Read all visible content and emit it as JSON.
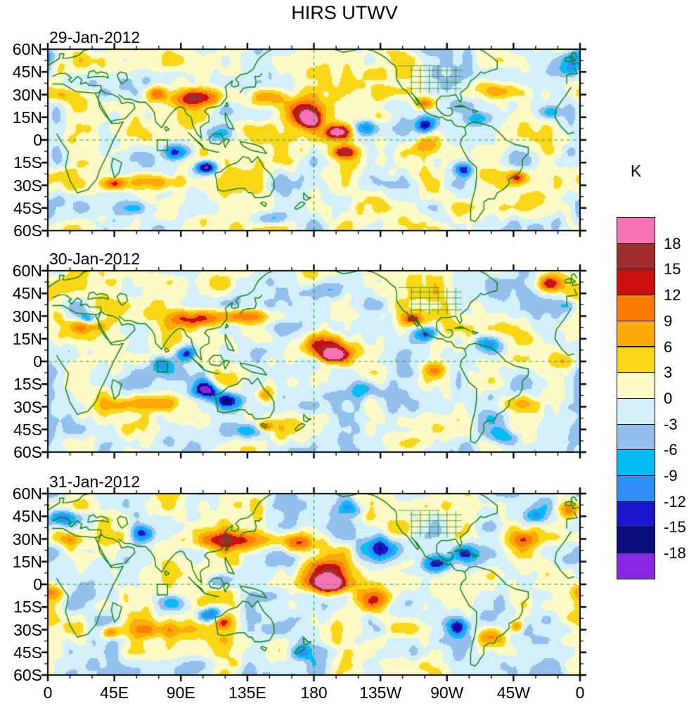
{
  "title": "HIRS UTWV",
  "colorbar": {
    "title": "K",
    "tick_labels": [
      "18",
      "15",
      "12",
      "9",
      "6",
      "3",
      "0",
      "-3",
      "-6",
      "-9",
      "-12",
      "-15",
      "-18"
    ]
  },
  "axes": {
    "lat_labels": [
      "60N",
      "45N",
      "30N",
      "15N",
      "0",
      "15S",
      "30S",
      "45S",
      "60S"
    ],
    "lon_labels": [
      "0",
      "45E",
      "90E",
      "135E",
      "180",
      "135W",
      "90W",
      "45W",
      "0"
    ],
    "lon_major_deg": 45,
    "lon_minor_deg": 15,
    "lat_major_deg": 15,
    "lat_minor_deg": 7.5
  },
  "chart_data": {
    "type": "heatmap",
    "title": "HIRS UTWV",
    "units": "K",
    "description": "HIRS upper-tropospheric water vapor brightness temperature anomaly (K), filled-contour world maps 60S-60N starting at 0 longitude, for three consecutive days; green coastlines, dashed equator and dashed 180 meridian, small green study-region box near 74-81E / 0-7S",
    "lon_range": [
      0,
      360
    ],
    "lat_range": [
      -60,
      60
    ],
    "levels": [
      -18,
      -15,
      -12,
      -9,
      -6,
      -3,
      0,
      3,
      6,
      9,
      12,
      15,
      18
    ],
    "palette_cold_to_warm": [
      "#8729E4",
      "#0B0B80",
      "#1A16CB",
      "#2F8FF7",
      "#07BCF3",
      "#93BFED",
      "#D3EFFA",
      "#FDFAC5",
      "#FAD716",
      "#FCA90B",
      "#FC7E08",
      "#CB0F0F",
      "#A02C2C",
      "#F873B6"
    ],
    "grid_lines": {
      "equator_dashed": true,
      "dateline_dashed": true
    },
    "region_box": {
      "lon": [
        74,
        81
      ],
      "lat": [
        -7,
        0
      ]
    },
    "features_format": [
      "lon_deg_east",
      "lat_deg",
      "peak_anomaly_K",
      "radius_lon_deg",
      "radius_lat_deg"
    ],
    "panels": [
      {
        "date": "29-Jan-2012",
        "seed": 11,
        "features": [
          [
            100,
            28,
            14,
            20,
            6
          ],
          [
            72,
            31,
            11,
            8,
            5
          ],
          [
            150,
            28,
            10,
            14,
            6
          ],
          [
            172,
            18,
            14,
            14,
            8
          ],
          [
            196,
            5,
            22,
            9,
            5
          ],
          [
            178,
            13,
            16,
            7,
            5
          ],
          [
            202,
            -8,
            15,
            8,
            4
          ],
          [
            255,
            24,
            12,
            7,
            4
          ],
          [
            305,
            33,
            10,
            20,
            6
          ],
          [
            318,
            -25,
            13,
            7,
            5
          ],
          [
            45,
            -29,
            13,
            7,
            4
          ],
          [
            75,
            -28,
            9,
            25,
            5
          ],
          [
            255,
            -5,
            9,
            10,
            6
          ],
          [
            10,
            30,
            8,
            14,
            5
          ],
          [
            107,
            -18,
            -21,
            7,
            4
          ],
          [
            88,
            -8,
            -15,
            8,
            5
          ],
          [
            118,
            4,
            -11,
            12,
            6
          ],
          [
            215,
            8,
            -10,
            8,
            5
          ],
          [
            256,
            10,
            -15,
            8,
            5
          ],
          [
            281,
            -20,
            -14,
            6,
            4
          ],
          [
            355,
            48,
            -11,
            9,
            6
          ],
          [
            340,
            18,
            -9,
            7,
            5
          ],
          [
            290,
            14,
            -8,
            8,
            4
          ],
          [
            358,
            55,
            -11,
            10,
            5
          ],
          [
            60,
            -45,
            -7,
            15,
            5
          ],
          [
            150,
            -52,
            -6,
            12,
            5
          ]
        ]
      },
      {
        "date": "30-Jan-2012",
        "seed": 23,
        "features": [
          [
            100,
            28,
            14,
            18,
            6
          ],
          [
            135,
            30,
            10,
            20,
            5
          ],
          [
            185,
            10,
            16,
            15,
            8
          ],
          [
            193,
            4,
            21,
            8,
            4
          ],
          [
            247,
            28,
            13,
            7,
            4
          ],
          [
            340,
            51,
            13,
            9,
            6
          ],
          [
            70,
            -28,
            9,
            22,
            5
          ],
          [
            148,
            -22,
            11,
            6,
            5
          ],
          [
            147,
            -43,
            12,
            5,
            3
          ],
          [
            318,
            -28,
            10,
            14,
            6
          ],
          [
            352,
            0,
            8,
            9,
            5
          ],
          [
            262,
            -5,
            9,
            9,
            6
          ],
          [
            28,
            24,
            9,
            14,
            5
          ],
          [
            107,
            -19,
            -21,
            7,
            5
          ],
          [
            122,
            -26,
            -14,
            9,
            5
          ],
          [
            93,
            5,
            -16,
            7,
            5
          ],
          [
            78,
            -2,
            -11,
            10,
            6
          ],
          [
            256,
            18,
            -16,
            8,
            5
          ],
          [
            298,
            12,
            -10,
            9,
            5
          ],
          [
            215,
            -18,
            -10,
            11,
            6
          ],
          [
            185,
            48,
            -9,
            11,
            6
          ],
          [
            28,
            28,
            -13,
            6,
            4
          ],
          [
            352,
            37,
            -9,
            6,
            4
          ],
          [
            135,
            -46,
            -8,
            13,
            5
          ],
          [
            310,
            -50,
            -7,
            10,
            5
          ]
        ]
      },
      {
        "date": "31-Jan-2012",
        "seed": 37,
        "features": [
          [
            125,
            29,
            13,
            26,
            6
          ],
          [
            170,
            28,
            15,
            13,
            6
          ],
          [
            190,
            8,
            17,
            15,
            10
          ],
          [
            190,
            0,
            22,
            11,
            5
          ],
          [
            222,
            -10,
            10,
            13,
            7
          ],
          [
            15,
            30,
            9,
            13,
            5
          ],
          [
            80,
            -30,
            9,
            26,
            6
          ],
          [
            42,
            -32,
            12,
            6,
            4
          ],
          [
            118,
            -25,
            10,
            6,
            4
          ],
          [
            300,
            -35,
            11,
            9,
            6
          ],
          [
            318,
            -28,
            12,
            5,
            4
          ],
          [
            320,
            30,
            9,
            13,
            6
          ],
          [
            352,
            50,
            13,
            8,
            6
          ],
          [
            2,
            -5,
            8,
            9,
            5
          ],
          [
            262,
            14,
            -17,
            9,
            6
          ],
          [
            277,
            -28,
            -13,
            8,
            6
          ],
          [
            110,
            -20,
            -16,
            9,
            5
          ],
          [
            85,
            -12,
            -10,
            11,
            6
          ],
          [
            118,
            3,
            -10,
            9,
            6
          ],
          [
            10,
            44,
            -12,
            11,
            5
          ],
          [
            64,
            34,
            -13,
            7,
            5
          ],
          [
            330,
            45,
            -9,
            8,
            5
          ],
          [
            225,
            25,
            -11,
            14,
            8
          ],
          [
            282,
            20,
            -9,
            7,
            5
          ],
          [
            170,
            -45,
            -9,
            10,
            5
          ],
          [
            205,
            50,
            -7,
            10,
            5
          ]
        ]
      }
    ]
  }
}
